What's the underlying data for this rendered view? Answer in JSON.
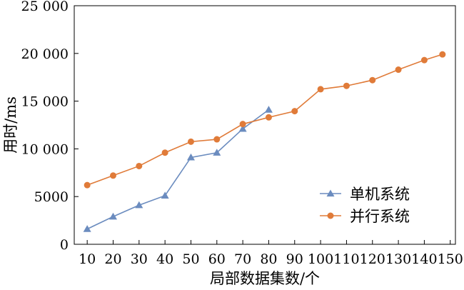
{
  "chart_data": {
    "type": "line",
    "xlabel": "局部数据集数/个",
    "ylabel": "用时/ms",
    "xlim": [
      5,
      152
    ],
    "ylim": [
      0,
      25000
    ],
    "x_ticks": [
      10,
      20,
      30,
      40,
      50,
      60,
      70,
      80,
      90,
      100,
      110,
      120,
      130,
      140,
      150
    ],
    "x_tick_labels": [
      "10",
      "20",
      "30",
      "40",
      "50",
      "60",
      "70",
      "80",
      "90",
      "100",
      "110",
      "120",
      "130",
      "140",
      "150"
    ],
    "y_ticks": [
      0,
      5000,
      10000,
      15000,
      20000,
      25000
    ],
    "y_tick_labels": [
      "0",
      "5000",
      "10 000",
      "15 000",
      "20 000",
      "25 000"
    ],
    "grid": false,
    "legend_position": "bottom-right",
    "series": [
      {
        "name": "单机系统",
        "color": "#6b8cbf",
        "marker": "triangle",
        "x": [
          10,
          20,
          30,
          40,
          50,
          60,
          70,
          80
        ],
        "y": [
          1600,
          2900,
          4100,
          5100,
          9100,
          9600,
          12100,
          14100
        ]
      },
      {
        "name": "并行系统",
        "color": "#e07b39",
        "marker": "circle",
        "x": [
          10,
          20,
          30,
          40,
          50,
          60,
          70,
          80,
          90,
          100,
          110,
          120,
          130,
          140,
          147
        ],
        "y": [
          6200,
          7200,
          8200,
          9600,
          10750,
          11000,
          12600,
          13300,
          13950,
          16250,
          16600,
          17200,
          18300,
          19300,
          19900
        ]
      }
    ]
  }
}
